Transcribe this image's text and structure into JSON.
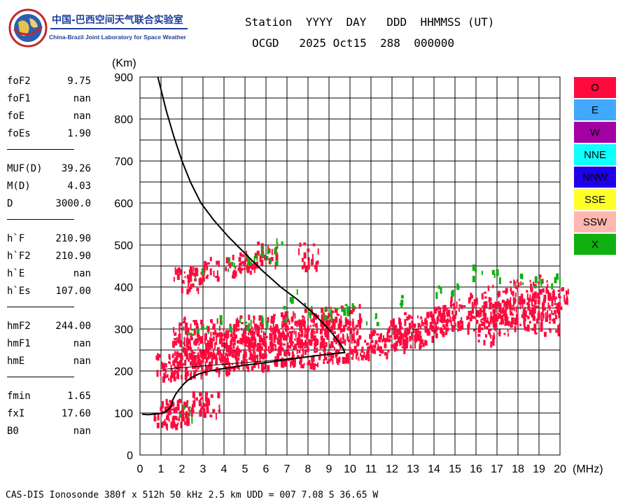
{
  "logo": {
    "name_cn": "中国-巴西空间天气联合实验室",
    "name_en": "China-Brazil Joint Laboratory for Space Weather"
  },
  "header": {
    "line1": "Station  YYYY  DAY   DDD  HHMMSS (UT)",
    "line2": "OCGD   2025 Oct15  288  000000"
  },
  "params": [
    {
      "key": "foF2",
      "value": "9.75"
    },
    {
      "key": "foF1",
      "value": "nan"
    },
    {
      "key": "foE",
      "value": "nan"
    },
    {
      "key": "foEs",
      "value": "1.90"
    },
    {
      "key": "MUF(D)",
      "value": "39.26"
    },
    {
      "key": "M(D)",
      "value": "4.03"
    },
    {
      "key": "D",
      "value": "3000.0"
    },
    {
      "key": "h`F",
      "value": "210.90"
    },
    {
      "key": "h`F2",
      "value": "210.90"
    },
    {
      "key": "h`E",
      "value": "nan"
    },
    {
      "key": "h`Es",
      "value": "107.00"
    },
    {
      "key": "hmF2",
      "value": "244.00"
    },
    {
      "key": "hmF1",
      "value": "nan"
    },
    {
      "key": "hmE",
      "value": "nan"
    },
    {
      "key": "fmin",
      "value": "1.65"
    },
    {
      "key": "fxI",
      "value": "17.60"
    },
    {
      "key": "B0",
      "value": "nan"
    }
  ],
  "legend": [
    {
      "label": "O",
      "color": "#ff0a3e"
    },
    {
      "label": "E",
      "color": "#42a8ff"
    },
    {
      "label": "W",
      "color": "#a400a4"
    },
    {
      "label": "NNE",
      "color": "#10ffff"
    },
    {
      "label": "NNW",
      "color": "#2000e8"
    },
    {
      "label": "SSE",
      "color": "#ffff2a"
    },
    {
      "label": "SSW",
      "color": "#ffb8b0"
    },
    {
      "label": "X",
      "color": "#10b010"
    }
  ],
  "footer": "CAS-DIS Ionosonde 380f x 512h 50 kHz 2.5 km UDD = 007 7.08 S 36.65 W",
  "chart_data": {
    "type": "scatter",
    "title": "",
    "xlabel": "(MHz)",
    "ylabel": "(Km)",
    "xlim": [
      0,
      20
    ],
    "ylim": [
      0,
      900
    ],
    "xticks": [
      0,
      1,
      2,
      3,
      4,
      5,
      6,
      7,
      8,
      9,
      10,
      11,
      12,
      13,
      14,
      15,
      16,
      17,
      18,
      19,
      20
    ],
    "yticks": [
      0,
      100,
      200,
      300,
      400,
      500,
      600,
      700,
      800,
      900
    ],
    "grid": true,
    "legend_position": "right",
    "series": [
      {
        "name": "O",
        "color": "#ff0a3e",
        "marker": "dots",
        "points": [
          [
            1.1,
            100
          ],
          [
            1.4,
            104
          ],
          [
            1.7,
            106
          ],
          [
            2.0,
            104
          ],
          [
            1.2,
            215
          ],
          [
            1.5,
            212
          ],
          [
            2.0,
            214
          ],
          [
            2.5,
            218
          ],
          [
            3.0,
            222
          ],
          [
            3.5,
            226
          ],
          [
            4.0,
            228
          ],
          [
            4.5,
            232
          ],
          [
            5.0,
            234
          ],
          [
            5.5,
            236
          ],
          [
            6.0,
            238
          ],
          [
            6.5,
            240
          ],
          [
            7.0,
            242
          ],
          [
            7.5,
            244
          ],
          [
            8.0,
            246
          ],
          [
            8.5,
            248
          ],
          [
            9.0,
            250
          ],
          [
            9.5,
            252
          ],
          [
            2.0,
            250
          ],
          [
            2.5,
            255
          ],
          [
            3.0,
            260
          ],
          [
            3.5,
            265
          ],
          [
            4.0,
            268
          ],
          [
            4.5,
            272
          ],
          [
            5.0,
            275
          ],
          [
            5.5,
            278
          ],
          [
            6.0,
            282
          ],
          [
            6.5,
            286
          ],
          [
            7.0,
            290
          ],
          [
            7.5,
            294
          ],
          [
            8.0,
            298
          ],
          [
            8.5,
            302
          ],
          [
            9.0,
            306
          ],
          [
            9.5,
            308
          ],
          [
            10.0,
            262
          ],
          [
            10.5,
            266
          ],
          [
            11.0,
            270
          ],
          [
            11.4,
            272
          ],
          [
            2.0,
            300
          ],
          [
            2.5,
            298
          ],
          [
            3.0,
            295
          ],
          [
            4.0,
            300
          ],
          [
            5.0,
            305
          ],
          [
            6.0,
            310
          ],
          [
            7.0,
            315
          ],
          [
            8.0,
            320
          ],
          [
            9.0,
            325
          ],
          [
            10.0,
            330
          ],
          [
            12.0,
            280
          ],
          [
            12.5,
            285
          ],
          [
            13.0,
            290
          ],
          [
            13.5,
            300
          ],
          [
            14.0,
            310
          ],
          [
            14.5,
            320
          ],
          [
            15.0,
            330
          ],
          [
            12.2,
            300
          ],
          [
            13.0,
            310
          ],
          [
            14.0,
            330
          ],
          [
            15.0,
            350
          ],
          [
            16.0,
            320
          ],
          [
            16.5,
            330
          ],
          [
            17.0,
            340
          ],
          [
            17.5,
            345
          ],
          [
            18.0,
            350
          ],
          [
            18.5,
            355
          ],
          [
            19.0,
            360
          ],
          [
            19.5,
            365
          ],
          [
            20.0,
            370
          ],
          [
            16.0,
            360
          ],
          [
            17.0,
            380
          ],
          [
            18.0,
            390
          ],
          [
            19.0,
            400
          ],
          [
            16.5,
            300
          ],
          [
            17.5,
            310
          ],
          [
            18.5,
            320
          ],
          [
            19.5,
            320
          ],
          [
            2.0,
            420
          ],
          [
            2.5,
            425
          ],
          [
            3.3,
            445
          ],
          [
            4.5,
            455
          ],
          [
            5.0,
            460
          ],
          [
            6.0,
            480
          ],
          [
            8.0,
            480
          ],
          [
            2.7,
            125
          ],
          [
            3.3,
            125
          ]
        ]
      },
      {
        "name": "X",
        "color": "#10b010",
        "marker": "dots",
        "points": [
          [
            2.1,
            108
          ],
          [
            2.3,
            106
          ],
          [
            2.5,
            300
          ],
          [
            3.0,
            310
          ],
          [
            4.0,
            320
          ],
          [
            5.0,
            325
          ],
          [
            6.0,
            330
          ],
          [
            7.0,
            340
          ],
          [
            8.0,
            350
          ],
          [
            9.0,
            345
          ],
          [
            10.0,
            360
          ],
          [
            11.0,
            330
          ],
          [
            4.2,
            460
          ],
          [
            5.2,
            470
          ],
          [
            5.8,
            495
          ],
          [
            6.5,
            500
          ],
          [
            2.8,
            430
          ],
          [
            12.5,
            370
          ],
          [
            14.2,
            390
          ],
          [
            15.0,
            400
          ],
          [
            16.0,
            440
          ],
          [
            17.0,
            430
          ],
          [
            18.0,
            420
          ],
          [
            19.0,
            410
          ],
          [
            19.8,
            420
          ],
          [
            6.2,
            480
          ],
          [
            7.2,
            380
          ],
          [
            9.5,
            350
          ]
        ]
      },
      {
        "name": "profile",
        "color": "#000000",
        "marker": "line",
        "points": [
          [
            0.1,
            97
          ],
          [
            0.4,
            96
          ],
          [
            0.8,
            98
          ],
          [
            1.1,
            100
          ],
          [
            1.35,
            108
          ],
          [
            1.5,
            118
          ],
          [
            1.55,
            130
          ],
          [
            1.7,
            145
          ],
          [
            1.9,
            158
          ],
          [
            2.1,
            170
          ],
          [
            2.4,
            183
          ],
          [
            2.8,
            193
          ],
          [
            3.3,
            200
          ],
          [
            4.0,
            206
          ],
          [
            5.0,
            214
          ],
          [
            6.0,
            220
          ],
          [
            7.0,
            227
          ],
          [
            8.0,
            234
          ],
          [
            8.8,
            239
          ],
          [
            9.4,
            242
          ],
          [
            9.75,
            244
          ],
          [
            9.65,
            256
          ],
          [
            9.45,
            270
          ],
          [
            9.15,
            290
          ],
          [
            8.75,
            312
          ],
          [
            8.2,
            340
          ],
          [
            7.5,
            370
          ],
          [
            6.7,
            400
          ],
          [
            5.8,
            440
          ],
          [
            5.0,
            480
          ],
          [
            4.2,
            520
          ],
          [
            3.5,
            560
          ],
          [
            2.9,
            600
          ],
          [
            2.4,
            650
          ],
          [
            2.0,
            700
          ],
          [
            1.6,
            760
          ],
          [
            1.25,
            820
          ],
          [
            1.0,
            870
          ],
          [
            0.85,
            900
          ]
        ]
      },
      {
        "name": "trace",
        "color": "#000000",
        "marker": "line",
        "points": [
          [
            1.3,
            205
          ],
          [
            2.0,
            208
          ],
          [
            3.0,
            212
          ],
          [
            4.0,
            216
          ],
          [
            5.0,
            220
          ],
          [
            6.0,
            224
          ],
          [
            7.0,
            229
          ],
          [
            8.0,
            234
          ],
          [
            9.0,
            240
          ],
          [
            9.75,
            245
          ]
        ]
      }
    ]
  }
}
